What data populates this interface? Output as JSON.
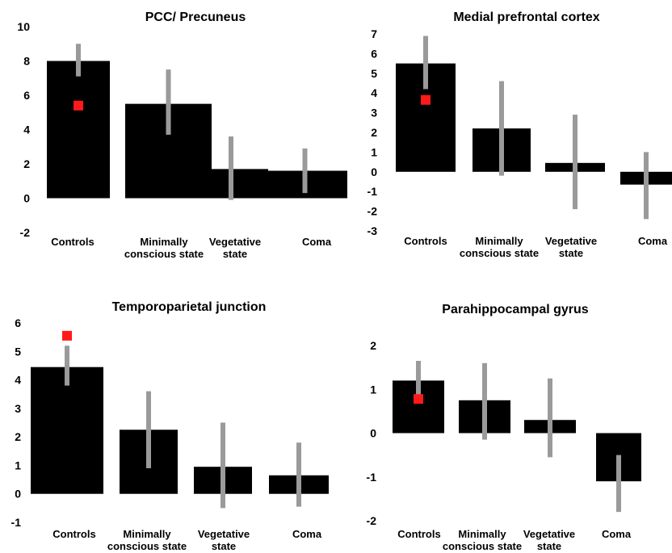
{
  "colors": {
    "bar": "#000000",
    "error": "#9a9a9a",
    "marker": "#ff1a1a"
  },
  "chart_data": [
    {
      "type": "bar",
      "title": "PCC/ Precuneus",
      "categories": [
        [
          "Controls"
        ],
        [
          "Minimally",
          "conscious state"
        ],
        [
          "Vegetative",
          "state"
        ],
        [
          "Coma"
        ]
      ],
      "values": [
        8.0,
        5.5,
        1.7,
        1.6
      ],
      "error_low": [
        7.1,
        3.7,
        -0.1,
        0.3
      ],
      "error_high": [
        9.0,
        7.5,
        3.6,
        2.9
      ],
      "marker": {
        "category_index": 0,
        "value": 5.4
      },
      "ylim": [
        -2,
        10
      ],
      "yticks": [
        -2,
        0,
        2,
        4,
        6,
        8,
        10
      ]
    },
    {
      "type": "bar",
      "title": "Medial prefrontal cortex",
      "categories": [
        [
          "Controls"
        ],
        [
          "Minimally",
          "conscious state"
        ],
        [
          "Vegetative",
          "state"
        ],
        [
          "Coma"
        ]
      ],
      "values": [
        5.5,
        2.2,
        0.45,
        -0.65
      ],
      "error_low": [
        4.2,
        -0.2,
        -1.9,
        -2.4
      ],
      "error_high": [
        6.9,
        4.6,
        2.9,
        1.0
      ],
      "marker": {
        "category_index": 0,
        "value": 3.65
      },
      "ylim": [
        -3,
        7
      ],
      "yticks": [
        -3,
        -2,
        -1,
        0,
        1,
        2,
        3,
        4,
        5,
        6,
        7
      ]
    },
    {
      "type": "bar",
      "title": "Temporoparietal junction",
      "categories": [
        [
          "Controls"
        ],
        [
          "Minimally",
          "conscious state"
        ],
        [
          "Vegetative",
          "state"
        ],
        [
          "Coma"
        ]
      ],
      "values": [
        4.45,
        2.25,
        0.95,
        0.65
      ],
      "error_low": [
        3.8,
        0.9,
        -0.5,
        -0.45
      ],
      "error_high": [
        5.2,
        3.6,
        2.5,
        1.8
      ],
      "marker": {
        "category_index": 0,
        "value": 5.55
      },
      "ylim": [
        -1,
        6
      ],
      "yticks": [
        -1,
        0,
        1,
        2,
        3,
        4,
        5,
        6
      ]
    },
    {
      "type": "bar",
      "title": "Parahippocampal gyrus",
      "categories": [
        [
          "Controls"
        ],
        [
          "Minimally",
          "conscious state"
        ],
        [
          "Vegetative",
          "state"
        ],
        [
          "Coma"
        ]
      ],
      "values": [
        1.2,
        0.75,
        0.3,
        -1.1
      ],
      "error_low": [
        0.75,
        -0.15,
        -0.55,
        -1.8
      ],
      "error_high": [
        1.65,
        1.6,
        1.25,
        -0.5
      ],
      "marker": {
        "category_index": 0,
        "value": 0.78
      },
      "ylim": [
        -2,
        2
      ],
      "yticks": [
        -2,
        -1,
        0,
        1,
        2
      ]
    }
  ]
}
